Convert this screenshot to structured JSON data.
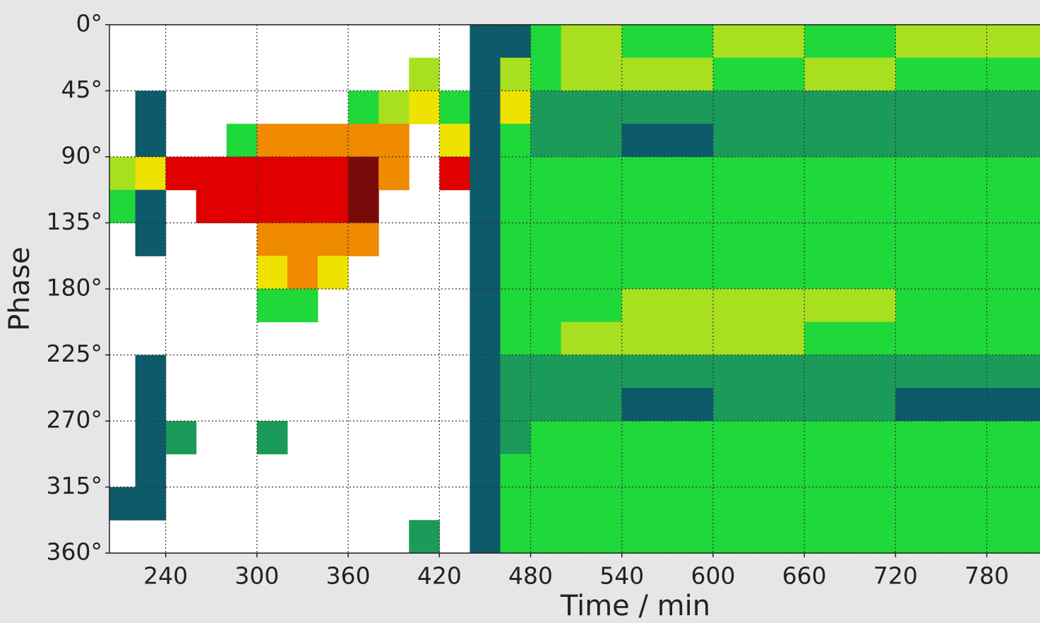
{
  "chart_data": {
    "type": "heatmap",
    "x_label": "Time / min",
    "y_label": "Phase",
    "xlim": [
      203,
      815
    ],
    "ylim": [
      0,
      360
    ],
    "y_inverted": true,
    "xticks": [
      240,
      300,
      360,
      420,
      480,
      540,
      600,
      660,
      720,
      780
    ],
    "yticks": [
      {
        "value": 0,
        "label": "0°"
      },
      {
        "value": 45,
        "label": "45°"
      },
      {
        "value": 90,
        "label": "90°"
      },
      {
        "value": 135,
        "label": "135°"
      },
      {
        "value": 180,
        "label": "180°"
      },
      {
        "value": 225,
        "label": "225°"
      },
      {
        "value": 270,
        "label": "270°"
      },
      {
        "value": 315,
        "label": "315°"
      },
      {
        "value": 360,
        "label": "360°"
      }
    ],
    "grid": true,
    "xbins": [
      203,
      220,
      240,
      260,
      280,
      300,
      320,
      340,
      360,
      380,
      400,
      420,
      440,
      460,
      480,
      500,
      540,
      600,
      660,
      720,
      815
    ],
    "ybins": [
      0,
      22.5,
      45,
      67.5,
      90,
      112.5,
      135,
      157.5,
      180,
      202.5,
      225,
      247.5,
      270,
      292.5,
      315,
      337.5,
      360
    ],
    "colorscale": [
      "#ffffff",
      "#0d5a6a",
      "#1c9a5a",
      "#1fd83a",
      "#a8e020",
      "#eee200",
      "#f08a00",
      "#e00000",
      "#7a0a0a"
    ],
    "z": [
      [
        0,
        0,
        0,
        0,
        0,
        0,
        0,
        0,
        0,
        0,
        0,
        0,
        1,
        1,
        3,
        4,
        3,
        4,
        3,
        4
      ],
      [
        0,
        0,
        0,
        0,
        0,
        0,
        0,
        0,
        0,
        0,
        4,
        0,
        1,
        4,
        3,
        4,
        4,
        3,
        4,
        3
      ],
      [
        0,
        1,
        0,
        0,
        0,
        0,
        0,
        0,
        3,
        4,
        5,
        3,
        1,
        5,
        2,
        2,
        2,
        2,
        2,
        2
      ],
      [
        0,
        1,
        0,
        0,
        3,
        6,
        6,
        6,
        6,
        6,
        0,
        5,
        1,
        3,
        2,
        2,
        1,
        2,
        2,
        2
      ],
      [
        4,
        5,
        7,
        7,
        7,
        7,
        7,
        7,
        8,
        6,
        0,
        7,
        1,
        3,
        3,
        3,
        3,
        3,
        3,
        3
      ],
      [
        3,
        1,
        0,
        7,
        7,
        7,
        7,
        7,
        8,
        0,
        0,
        0,
        1,
        3,
        3,
        3,
        3,
        3,
        3,
        3
      ],
      [
        0,
        1,
        0,
        0,
        0,
        6,
        6,
        6,
        6,
        0,
        0,
        0,
        1,
        3,
        3,
        3,
        3,
        3,
        3,
        3
      ],
      [
        0,
        0,
        0,
        0,
        0,
        5,
        6,
        5,
        0,
        0,
        0,
        0,
        1,
        3,
        3,
        3,
        3,
        3,
        3,
        3
      ],
      [
        0,
        0,
        0,
        0,
        0,
        3,
        3,
        0,
        0,
        0,
        0,
        0,
        1,
        3,
        3,
        3,
        4,
        4,
        4,
        3
      ],
      [
        0,
        0,
        0,
        0,
        0,
        0,
        0,
        0,
        0,
        0,
        0,
        0,
        1,
        3,
        3,
        4,
        4,
        4,
        3,
        3
      ],
      [
        0,
        1,
        0,
        0,
        0,
        0,
        0,
        0,
        0,
        0,
        0,
        0,
        1,
        2,
        2,
        2,
        2,
        2,
        2,
        2
      ],
      [
        0,
        1,
        0,
        0,
        0,
        0,
        0,
        0,
        0,
        0,
        0,
        0,
        1,
        2,
        2,
        2,
        1,
        2,
        2,
        1
      ],
      [
        0,
        1,
        2,
        0,
        0,
        2,
        0,
        0,
        0,
        0,
        0,
        0,
        1,
        2,
        3,
        3,
        3,
        3,
        3,
        3
      ],
      [
        0,
        1,
        0,
        0,
        0,
        0,
        0,
        0,
        0,
        0,
        0,
        0,
        1,
        3,
        3,
        3,
        3,
        3,
        3,
        3
      ],
      [
        1,
        1,
        0,
        0,
        0,
        0,
        0,
        0,
        0,
        0,
        0,
        0,
        1,
        3,
        3,
        3,
        3,
        3,
        3,
        3
      ],
      [
        0,
        0,
        0,
        0,
        0,
        0,
        0,
        0,
        0,
        0,
        2,
        0,
        1,
        3,
        3,
        3,
        3,
        3,
        3,
        3
      ]
    ]
  }
}
